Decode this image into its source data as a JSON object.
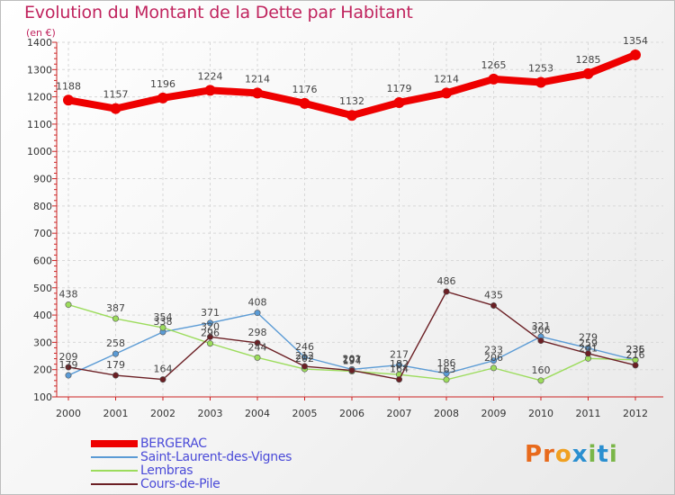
{
  "header": {
    "title": "Evolution du Montant de la Dette par Habitant",
    "subtitle": "(en €)"
  },
  "logo": {
    "text": "Proxiti",
    "colors": [
      "#e86a1c",
      "#e86a1c",
      "#f0a020",
      "#2a8fd0",
      "#7ab648",
      "#2a8fd0",
      "#7ab648"
    ]
  },
  "chart_data": {
    "type": "line",
    "title": "Evolution du Montant de la Dette par Habitant",
    "subtitle": "(en €)",
    "categories": [
      "2000",
      "2001",
      "2002",
      "2003",
      "2004",
      "2005",
      "2006",
      "2007",
      "2008",
      "2009",
      "2010",
      "2011",
      "2012"
    ],
    "ylim": [
      100,
      1400
    ],
    "yticks": [
      100,
      200,
      300,
      400,
      500,
      600,
      700,
      800,
      900,
      1000,
      1100,
      1200,
      1300,
      1400
    ],
    "grid": true,
    "legend_position": "bottom-left",
    "series": [
      {
        "name": "BERGERAC",
        "color": "#ee0000",
        "values": [
          1188,
          1157,
          1196,
          1224,
          1214,
          1176,
          1132,
          1179,
          1214,
          1265,
          1253,
          1285,
          1354
        ]
      },
      {
        "name": "Saint-Laurent-des-Vignes",
        "color": "#5b9bd5",
        "values": [
          179,
          258,
          338,
          371,
          408,
          246,
          201,
          217,
          186,
          233,
          321,
          279,
          235
        ]
      },
      {
        "name": "Lembras",
        "color": "#9cdc5c",
        "values": [
          438,
          387,
          354,
          296,
          244,
          202,
          194,
          182,
          163,
          206,
          160,
          241,
          236
        ]
      },
      {
        "name": "Cours-de-Pile",
        "color": "#6b1f24",
        "values": [
          209,
          179,
          164,
          320,
          298,
          212,
          197,
          164,
          486,
          435,
          306,
          259,
          216
        ]
      }
    ]
  }
}
